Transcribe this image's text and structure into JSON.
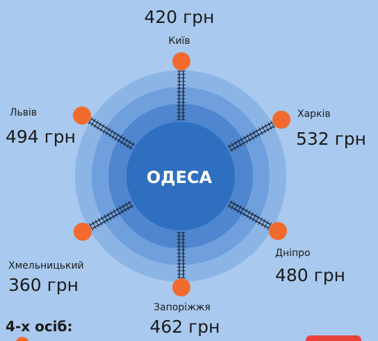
{
  "center": {
    "label": "ОДЕСА"
  },
  "nodes": [
    {
      "label": "Київ",
      "price": "420 грн"
    },
    {
      "label": "Харків",
      "price": "532 грн"
    },
    {
      "label": "Дніпро",
      "price": "480 грн"
    },
    {
      "label": "Запоріжжя",
      "price": "462 грн"
    },
    {
      "label": "Хмельницький",
      "price": "360 грн"
    },
    {
      "label": "Львів",
      "price": "494 грн"
    }
  ],
  "footer": {
    "text": "4-х осіб:"
  }
}
